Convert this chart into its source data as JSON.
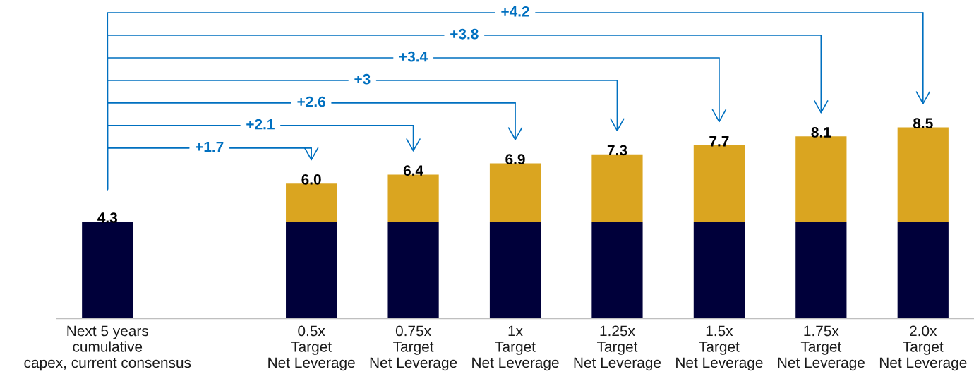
{
  "chart_data": {
    "type": "bar",
    "stacked": true,
    "categories": [
      "Next 5 years\ncumulative\ncapex, current consensus",
      null,
      "0.5x\nTarget\nNet Leverage",
      "0.75x\nTarget\nNet Leverage",
      "1x\nTarget\nNet Leverage",
      "1.25x\nTarget\nNet Leverage",
      "1.5x\nTarget\nNet Leverage",
      "1.75x\nTarget\nNet Leverage",
      "2.0x\nTarget\nNet Leverage"
    ],
    "series": [
      {
        "color": "#00003a",
        "values": [
          4.3,
          null,
          4.3,
          4.3,
          4.3,
          4.3,
          4.3,
          4.3,
          4.3
        ],
        "value_labels": [
          "4.3",
          null,
          null,
          null,
          null,
          null,
          null,
          null,
          null
        ]
      },
      {
        "color": "#daa520",
        "values": [
          null,
          null,
          1.7,
          2.1,
          2.6,
          3,
          3.4,
          3.8,
          4.2
        ]
      }
    ],
    "totals": [
      null,
      null,
      "6.0",
      "6.4",
      "6.9",
      "7.3",
      "7.7",
      "8.1",
      "8.5"
    ],
    "annotations": [
      "+1.7",
      "+2.1",
      "+2.6",
      "+3",
      "+3.4",
      "+3.8",
      "+4.2"
    ],
    "tick_labels": "x"
  }
}
